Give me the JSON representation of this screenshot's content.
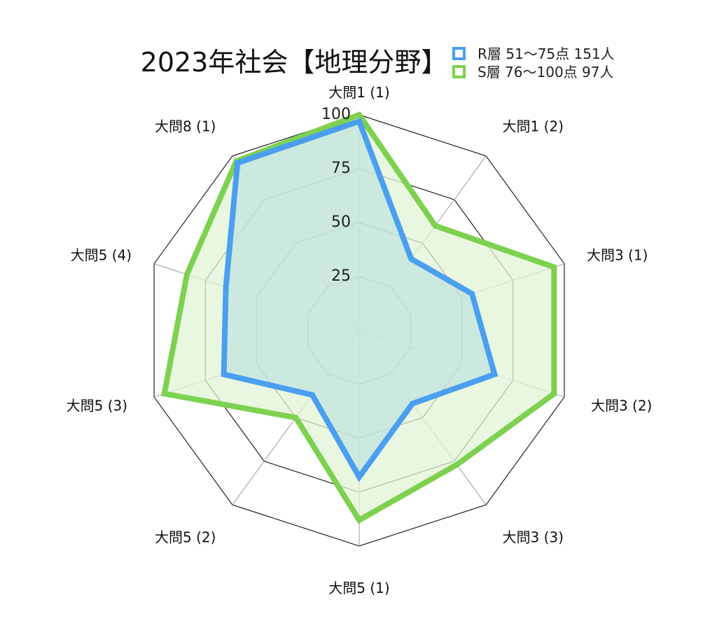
{
  "chart_data": {
    "type": "radar",
    "title": "2023年社会【地理分野】",
    "axes": [
      "大問1 (1)",
      "大問1 (2)",
      "大問3 (1)",
      "大問3 (2)",
      "大問3 (3)",
      "大問5 (1)",
      "大問5 (2)",
      "大問5 (3)",
      "大問5 (4)",
      "大問8 (1)"
    ],
    "rlim": [
      0,
      100
    ],
    "ticks": [
      25,
      50,
      75,
      100
    ],
    "grid": true,
    "legend_position": "top-right",
    "series": [
      {
        "name": "R層 51〜75点 151人",
        "color": "#4a9ff0",
        "fill": "#bfe3df",
        "values": [
          97,
          41,
          55,
          66,
          42,
          68,
          37,
          66,
          65,
          96
        ]
      },
      {
        "name": "S層 76〜100点 97人",
        "color": "#7dd150",
        "fill": "#e3f4d6",
        "values": [
          100,
          60,
          95,
          95,
          77,
          88,
          50,
          95,
          84,
          97
        ]
      }
    ]
  }
}
